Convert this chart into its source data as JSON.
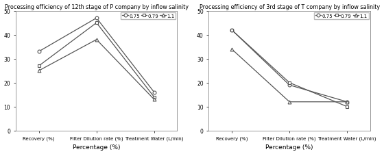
{
  "left": {
    "title": "Processing efficiency of 12th stage of P company by inflow salinity",
    "series": {
      "0.75": [
        33,
        47,
        16
      ],
      "0.79": [
        27,
        45,
        14
      ],
      "1.1": [
        25,
        38,
        13
      ]
    },
    "markers": [
      "o",
      "s",
      "^"
    ],
    "xlabel": "Percentage (%)",
    "xtick_labels": [
      "Recovery (%)",
      "Filter Dilution rate (%)",
      "Treatment Water (L/min)"
    ],
    "ylim": [
      0,
      50
    ],
    "yticks": [
      0,
      10,
      20,
      30,
      40,
      50
    ]
  },
  "right": {
    "title": "Processing efficiency of 3rd stage of T company by inflow salinity",
    "series": {
      "0.75": [
        42,
        19,
        12
      ],
      "0.79": [
        42,
        20,
        10
      ],
      "1.1": [
        34,
        12,
        12
      ]
    },
    "markers": [
      "o",
      "s",
      "^"
    ],
    "xlabel": "Percentage (%)",
    "xtick_labels": [
      "Recovery (%)",
      "Filter Dilution rate (%)",
      "Treatment Water (L/min)"
    ],
    "ylim": [
      0,
      50
    ],
    "yticks": [
      0,
      10,
      20,
      30,
      40,
      50
    ]
  },
  "legend_labels": [
    "0.75",
    "0.79",
    "1.1"
  ],
  "legend_markers": [
    "o",
    "s",
    "^"
  ],
  "line_color": "#555555",
  "figsize": [
    5.6,
    2.26
  ],
  "dpi": 100
}
